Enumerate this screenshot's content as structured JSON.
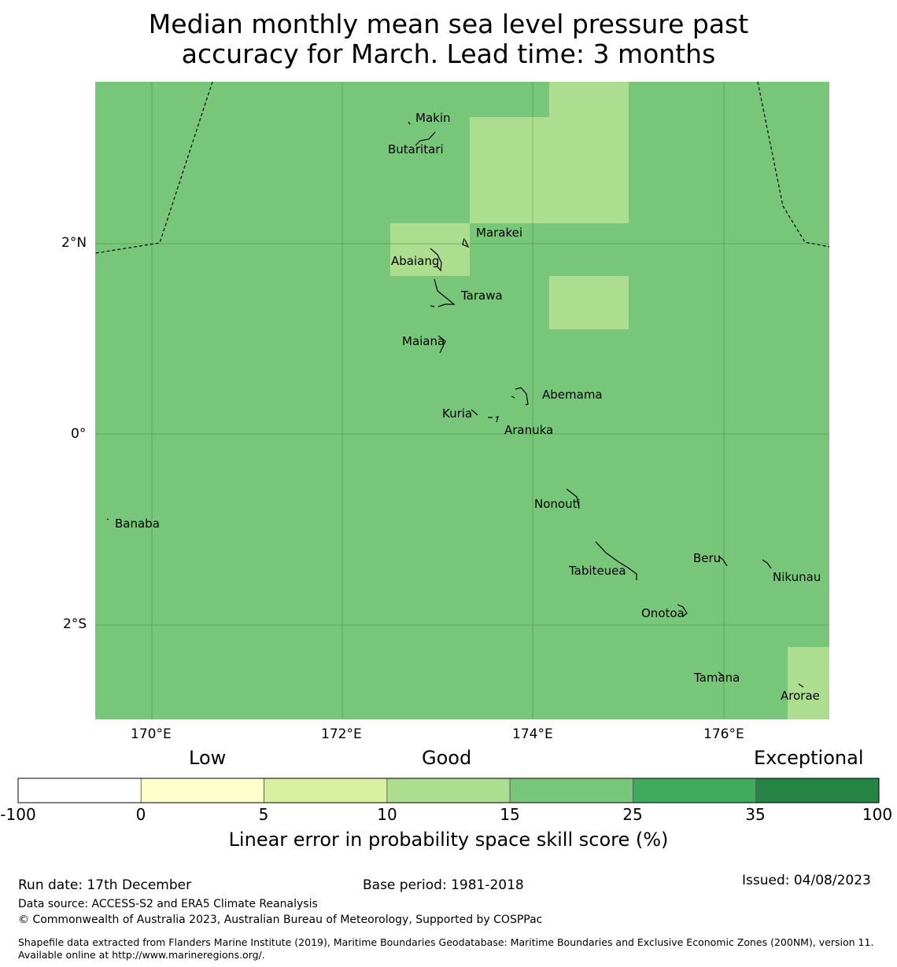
{
  "title_line1": "Median monthly mean sea level pressure past",
  "title_line2": "accuracy for March. Lead time: 3 months",
  "map": {
    "background_color": "#78c679",
    "highlight_color": "#addd8e",
    "lat_labels": [
      "2°N",
      "0°",
      "2°S"
    ],
    "lon_labels": [
      "170°E",
      "172°E",
      "174°E",
      "176°E"
    ],
    "places": [
      {
        "name": "Makin"
      },
      {
        "name": "Butaritari"
      },
      {
        "name": "Marakei"
      },
      {
        "name": "Abaiang"
      },
      {
        "name": "Tarawa"
      },
      {
        "name": "Maiana"
      },
      {
        "name": "Abemama"
      },
      {
        "name": "Kuria"
      },
      {
        "name": "Aranuka"
      },
      {
        "name": "Nonouti"
      },
      {
        "name": "Banaba"
      },
      {
        "name": "Beru"
      },
      {
        "name": "Tabiteuea"
      },
      {
        "name": "Nikunau"
      },
      {
        "name": "Onotoa"
      },
      {
        "name": "Tamana"
      },
      {
        "name": "Arorae"
      }
    ]
  },
  "colorbar": {
    "categories": [
      "Low",
      "Good",
      "Exceptional"
    ],
    "ticks": [
      "-100",
      "0",
      "5",
      "10",
      "15",
      "25",
      "35",
      "100"
    ],
    "colors": [
      "#ffffff",
      "#ffffcc",
      "#d9f0a3",
      "#addd8e",
      "#78c679",
      "#41ab5d",
      "#238443"
    ],
    "title": "Linear error in probability space skill score (%)"
  },
  "footer": {
    "run_date": "Run date: 17th December",
    "base_period": "Base period: 1981-2018",
    "issued": "Issued: 04/08/2023",
    "data_source": "Data source: ACCESS-S2 and ERA5 Climate Reanalysis",
    "copyright": "© Commonwealth of Australia 2023, Australian Bureau of Meteorology, Supported by COSPPac",
    "shapefile": "Shapefile data extracted from Flanders Marine Institute (2019), Maritime Boundaries Geodatabase: Maritime Boundaries and Exclusive Economic Zones (200NM), version 11. Available online at http://www.marineregions.org/."
  }
}
